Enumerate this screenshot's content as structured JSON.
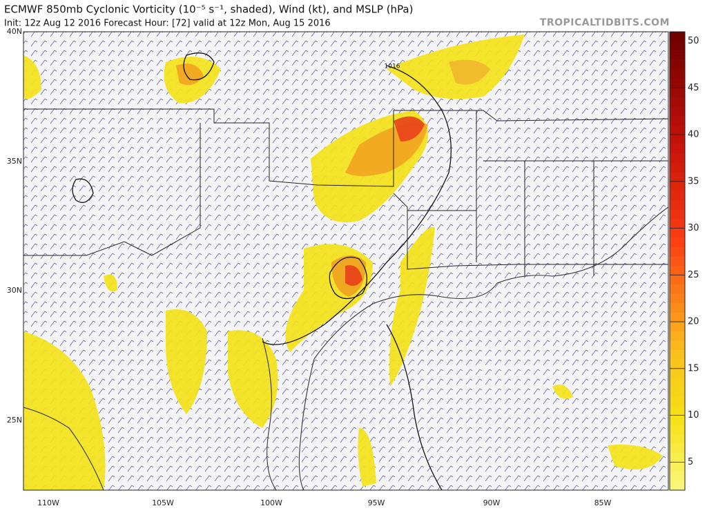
{
  "header": {
    "title": "ECMWF 850mb Cyclonic Vorticity (10⁻⁵ s⁻¹, shaded), Wind (kt), and MSLP (hPa)",
    "subtitle": "Init: 12z Aug 12 2016   Forecast Hour: [72]   valid at 12z Mon, Aug 15 2016",
    "site": "TROPICALTIDBITS.COM"
  },
  "map": {
    "lat_labels": [
      "40N",
      "35N",
      "30N",
      "25N"
    ],
    "lon_labels": [
      "110W",
      "105W",
      "100W",
      "95W",
      "90W",
      "85W"
    ],
    "isobar_label": "1016"
  },
  "colorbar": {
    "lim": [
      2,
      51
    ],
    "ticks": [
      5,
      10,
      15,
      20,
      25,
      30,
      35,
      40,
      45,
      50
    ]
  }
}
